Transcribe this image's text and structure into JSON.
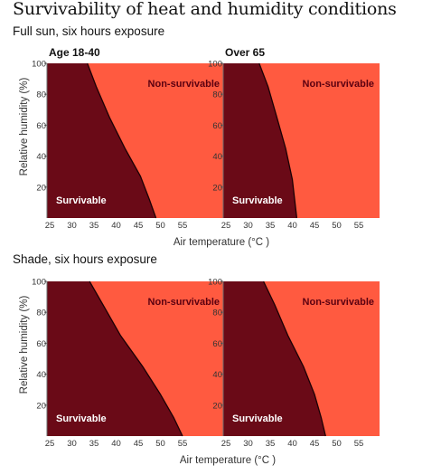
{
  "title": "Survivability of heat and humidity conditions",
  "sections": [
    {
      "subtitle": "Full sun, six hours exposure"
    },
    {
      "subtitle": "Shade, six hours exposure"
    }
  ],
  "colors": {
    "survivable": "#6a0a17",
    "non_survivable": "#ff5a40",
    "boundary": "#1a0004"
  },
  "chart_data": [
    {
      "type": "area",
      "panel_title": "Age 18-40",
      "section": "Full sun, six hours exposure",
      "xlabel": "Air temperature (°C )",
      "ylabel": "Relative humidity (%)",
      "xlim": [
        25,
        60
      ],
      "ylim": [
        0,
        100
      ],
      "xticks": [
        "25",
        "30",
        "35",
        "40",
        "45",
        "50",
        "55"
      ],
      "yticks": [
        "20",
        "40",
        "60",
        "80",
        "100"
      ],
      "regions": [
        "Survivable",
        "Non-survivable"
      ],
      "boundary": {
        "x": [
          33.5,
          35.5,
          38.5,
          42,
          45.5,
          47.5,
          49
        ],
        "y": [
          100,
          85,
          65,
          45,
          27,
          12,
          0
        ]
      }
    },
    {
      "type": "area",
      "panel_title": "Over 65",
      "section": "Full sun, six hours exposure",
      "xlabel": "Air temperature (°C )",
      "ylabel": "Relative humidity (%)",
      "xlim": [
        25,
        60
      ],
      "ylim": [
        0,
        100
      ],
      "xticks": [
        "25",
        "30",
        "35",
        "40",
        "45",
        "50",
        "55"
      ],
      "yticks": [
        "20",
        "40",
        "60",
        "80",
        "100"
      ],
      "regions": [
        "Survivable",
        "Non-survivable"
      ],
      "boundary": {
        "x": [
          32.5,
          34.5,
          36.5,
          38.5,
          40,
          41
        ],
        "y": [
          100,
          85,
          65,
          45,
          25,
          0
        ]
      }
    },
    {
      "type": "area",
      "panel_title": "",
      "section": "Shade, six hours exposure",
      "xlabel": "Air temperature (°C )",
      "ylabel": "Relative humidity (%)",
      "xlim": [
        25,
        60
      ],
      "ylim": [
        0,
        100
      ],
      "xticks": [
        "25",
        "30",
        "35",
        "40",
        "45",
        "50",
        "55"
      ],
      "yticks": [
        "20",
        "40",
        "60",
        "80",
        "100"
      ],
      "regions": [
        "Survivable",
        "Non-survivable"
      ],
      "boundary": {
        "x": [
          34,
          37,
          41,
          46,
          50,
          53,
          55
        ],
        "y": [
          100,
          85,
          65,
          45,
          27,
          12,
          0
        ]
      }
    },
    {
      "type": "area",
      "panel_title": "",
      "section": "Shade, six hours exposure",
      "xlabel": "Air temperature (°C )",
      "ylabel": "Relative humidity (%)",
      "xlim": [
        25,
        60
      ],
      "ylim": [
        0,
        100
      ],
      "xticks": [
        "25",
        "30",
        "35",
        "40",
        "45",
        "50",
        "55"
      ],
      "yticks": [
        "20",
        "40",
        "60",
        "80",
        "100"
      ],
      "regions": [
        "Survivable",
        "Non-survivable"
      ],
      "boundary": {
        "x": [
          33.5,
          36,
          39,
          42.5,
          45,
          46.5,
          47.5
        ],
        "y": [
          100,
          85,
          65,
          45,
          27,
          12,
          0
        ]
      }
    }
  ]
}
